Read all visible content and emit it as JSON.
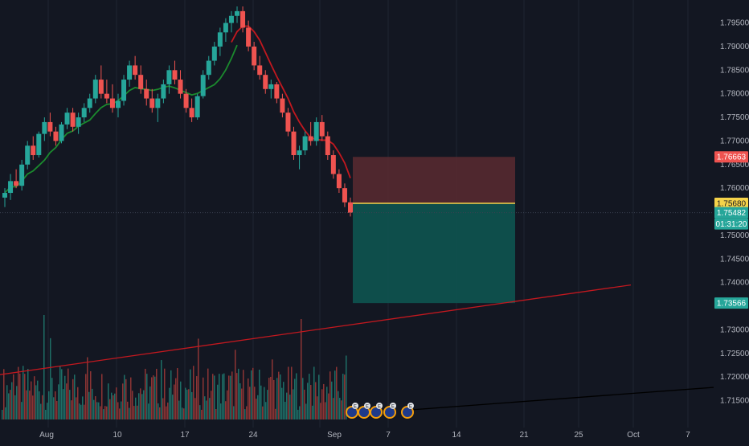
{
  "colors": {
    "background": "#131722",
    "grid": "#1f2433",
    "candle_up": "#26a69a",
    "candle_down": "#ef5350",
    "volume_up": "#1e6e66",
    "volume_down": "#8c3434",
    "ma_fast": "#c2181f",
    "ma_slow": "#1b8a2e",
    "stop_zone": "#5a2a30",
    "target_zone": "#0e5450",
    "entry_line": "#f5d34a",
    "trendline_red": "#c2181f",
    "trendline_black": "#000000",
    "axis_text": "#b2b5be",
    "badge_stop": "#ef5350",
    "badge_entry": "#f5d34a",
    "badge_current": "#26a69a",
    "badge_target": "#26a69a"
  },
  "price_axis": {
    "labels": [
      "1.79500",
      "1.79000",
      "1.78500",
      "1.78000",
      "1.77500",
      "1.77000",
      "1.76500",
      "1.76000",
      "1.75000",
      "1.74500",
      "1.74000",
      "1.73000",
      "1.72500",
      "1.72000",
      "1.71500"
    ]
  },
  "time_axis": {
    "labels": [
      "Aug",
      "10",
      "17",
      "24",
      "Sep",
      "7",
      "14",
      "21",
      "25",
      "Oct",
      "7"
    ]
  },
  "badges": {
    "stop_price": "1.76663",
    "entry_price": "1.75680",
    "current_price": "1.75482",
    "countdown": "01:31:20",
    "target_price": "1.73566"
  },
  "event_markers": [
    "E",
    "E",
    "E",
    "E",
    "E"
  ],
  "chart_data": {
    "type": "candlestick",
    "instrument_scale": "price",
    "price_range": [
      1.711,
      1.7985
    ],
    "position": {
      "type": "short",
      "entry": 1.7568,
      "stop": 1.76663,
      "target": 1.73566
    },
    "current_price": 1.75482,
    "trendline": {
      "from": {
        "time": "Jul 29",
        "price": 1.7205
      },
      "to": {
        "time": "Sep 30",
        "price": 1.7395
      }
    },
    "secondary_trendline": {
      "from": {
        "time": "Sep 6",
        "price": 1.713
      },
      "to": {
        "time": "Oct 10",
        "price": 1.7178
      }
    },
    "candles": [
      [
        1.758,
        1.76,
        1.756,
        1.759
      ],
      [
        1.759,
        1.763,
        1.7575,
        1.7615
      ],
      [
        1.7615,
        1.764,
        1.76,
        1.7605
      ],
      [
        1.7605,
        1.766,
        1.7595,
        1.765
      ],
      [
        1.765,
        1.77,
        1.764,
        1.769
      ],
      [
        1.769,
        1.771,
        1.766,
        1.767
      ],
      [
        1.767,
        1.772,
        1.7665,
        1.7715
      ],
      [
        1.7715,
        1.775,
        1.77,
        1.774
      ],
      [
        1.774,
        1.776,
        1.771,
        1.772
      ],
      [
        1.772,
        1.773,
        1.769,
        1.77
      ],
      [
        1.77,
        1.774,
        1.7695,
        1.7735
      ],
      [
        1.7735,
        1.777,
        1.7725,
        1.776
      ],
      [
        1.776,
        1.777,
        1.772,
        1.773
      ],
      [
        1.773,
        1.776,
        1.7715,
        1.775
      ],
      [
        1.775,
        1.778,
        1.774,
        1.777
      ],
      [
        1.777,
        1.78,
        1.776,
        1.779
      ],
      [
        1.779,
        1.784,
        1.778,
        1.783
      ],
      [
        1.783,
        1.786,
        1.779,
        1.78
      ],
      [
        1.78,
        1.783,
        1.778,
        1.779
      ],
      [
        1.779,
        1.782,
        1.776,
        1.777
      ],
      [
        1.777,
        1.78,
        1.775,
        1.7785
      ],
      [
        1.7785,
        1.784,
        1.7775,
        1.783
      ],
      [
        1.783,
        1.787,
        1.7815,
        1.786
      ],
      [
        1.786,
        1.788,
        1.783,
        1.784
      ],
      [
        1.784,
        1.786,
        1.78,
        1.781
      ],
      [
        1.781,
        1.783,
        1.7775,
        1.779
      ],
      [
        1.779,
        1.781,
        1.776,
        1.777
      ],
      [
        1.777,
        1.78,
        1.774,
        1.779
      ],
      [
        1.779,
        1.783,
        1.778,
        1.782
      ],
      [
        1.782,
        1.786,
        1.78,
        1.785
      ],
      [
        1.785,
        1.787,
        1.782,
        1.783
      ],
      [
        1.783,
        1.785,
        1.779,
        1.78
      ],
      [
        1.78,
        1.781,
        1.776,
        1.777
      ],
      [
        1.777,
        1.779,
        1.774,
        1.775
      ],
      [
        1.775,
        1.78,
        1.7745,
        1.7795
      ],
      [
        1.7795,
        1.785,
        1.779,
        1.784
      ],
      [
        1.784,
        1.788,
        1.783,
        1.787
      ],
      [
        1.787,
        1.791,
        1.786,
        1.79
      ],
      [
        1.79,
        1.794,
        1.788,
        1.793
      ],
      [
        1.793,
        1.796,
        1.791,
        1.795
      ],
      [
        1.795,
        1.7975,
        1.793,
        1.7965
      ],
      [
        1.7965,
        1.7985,
        1.795,
        1.7975
      ]
    ],
    "drop_candles": [
      [
        1.7975,
        1.7985,
        1.793,
        1.794
      ],
      [
        1.794,
        1.7955,
        1.789,
        1.79
      ],
      [
        1.79,
        1.791,
        1.785,
        1.786
      ],
      [
        1.786,
        1.788,
        1.783,
        1.784
      ],
      [
        1.784,
        1.785,
        1.78,
        1.781
      ],
      [
        1.781,
        1.783,
        1.779,
        1.782
      ],
      [
        1.782,
        1.7825,
        1.778,
        1.779
      ],
      [
        1.779,
        1.78,
        1.775,
        1.776
      ],
      [
        1.776,
        1.777,
        1.771,
        1.772
      ],
      [
        1.772,
        1.773,
        1.766,
        1.767
      ],
      [
        1.767,
        1.769,
        1.764,
        1.768
      ],
      [
        1.768,
        1.772,
        1.767,
        1.771
      ],
      [
        1.771,
        1.774,
        1.769,
        1.77
      ],
      [
        1.77,
        1.775,
        1.769,
        1.774
      ],
      [
        1.774,
        1.7755,
        1.77,
        1.771
      ],
      [
        1.771,
        1.772,
        1.766,
        1.767
      ],
      [
        1.767,
        1.768,
        1.762,
        1.763
      ],
      [
        1.763,
        1.764,
        1.759,
        1.76
      ],
      [
        1.76,
        1.761,
        1.756,
        1.757
      ],
      [
        1.757,
        1.758,
        1.754,
        1.7548
      ]
    ]
  }
}
